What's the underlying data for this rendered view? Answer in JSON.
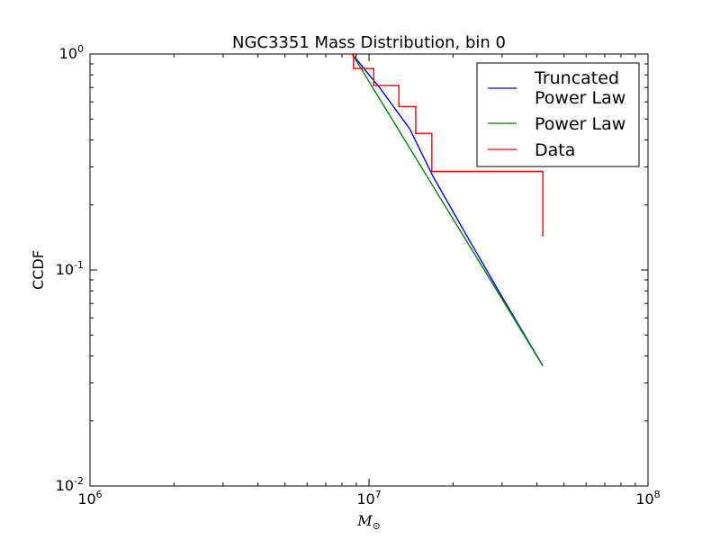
{
  "chart_data": {
    "type": "line",
    "title": "NGC3351 Mass Distribution, bin 0",
    "xlabel_main": "M",
    "xlabel_sub": "⊙",
    "ylabel": "CCDF",
    "xscale": "log",
    "yscale": "log",
    "xlim": [
      1000000,
      100000000
    ],
    "ylim": [
      0.01,
      1
    ],
    "x_ticks": [
      {
        "base": "10",
        "exp": "6"
      },
      {
        "base": "10",
        "exp": "7"
      },
      {
        "base": "10",
        "exp": "8"
      }
    ],
    "y_ticks": [
      {
        "base": "10",
        "exp": "0"
      },
      {
        "base": "10",
        "exp": "-1"
      },
      {
        "base": "10",
        "exp": "-2"
      }
    ],
    "grid": false,
    "legend_position": "top-right",
    "series": [
      {
        "name": "Truncated Power Law",
        "legend_lines": [
          "Truncated",
          "Power Law"
        ],
        "color": "#0000ff",
        "style": "line",
        "x": [
          8700000,
          11000000,
          14000000,
          17000000,
          22000000,
          30000000,
          42000000
        ],
        "y": [
          1.0,
          0.69,
          0.45,
          0.27,
          0.15,
          0.075,
          0.036
        ]
      },
      {
        "name": "Power Law",
        "legend_lines": [
          "Power Law"
        ],
        "color": "#008000",
        "style": "line",
        "x": [
          8700000,
          42000000
        ],
        "y": [
          1.0,
          0.036
        ]
      },
      {
        "name": "Data",
        "legend_lines": [
          "Data"
        ],
        "color": "#ff0000",
        "style": "step",
        "x": [
          8700000,
          8800000,
          10400000,
          12800000,
          14700000,
          16800000,
          42000000
        ],
        "y": [
          1.0,
          0.857,
          0.714,
          0.571,
          0.429,
          0.286,
          0.143
        ]
      }
    ]
  }
}
